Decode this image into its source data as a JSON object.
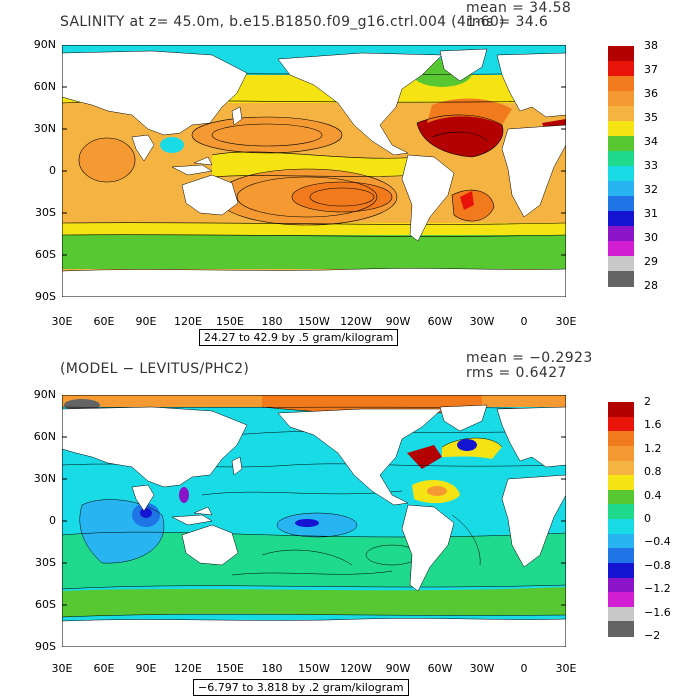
{
  "top": {
    "title": "SALINITY at z=  45.0m, b.e15.B1850.f09_g16.ctrl.004 (41-60)",
    "mean_text": "mean = 34.58",
    "rms_text": "rms = 34.6",
    "range_text": "24.27 to 42.9 by .5 gram/kilogram",
    "colorbar": {
      "labels": [
        "38",
        "37",
        "36",
        "35",
        "34",
        "33",
        "32",
        "31",
        "30",
        "29",
        "28"
      ],
      "colors": [
        "#b30000",
        "#e8140a",
        "#f07a1c",
        "#f59a32",
        "#f5b342",
        "#f5e314",
        "#57c832",
        "#1fd98c",
        "#19dbe6",
        "#28b4f0",
        "#1f74e6",
        "#1414d2",
        "#8c14c8",
        "#d21ed2",
        "#c8c8c8",
        "#646464"
      ]
    }
  },
  "bottom": {
    "title": "(MODEL − LEVITUS/PHC2)",
    "mean_text": "mean = −0.2923",
    "rms_text": "rms = 0.6427",
    "range_text": "−6.797 to 3.818 by .2 gram/kilogram",
    "colorbar": {
      "labels": [
        "2",
        "1.6",
        "1.2",
        "0.8",
        "0.4",
        "0",
        "−0.4",
        "−0.8",
        "−1.2",
        "−1.6",
        "−2"
      ],
      "colors": [
        "#b30000",
        "#e8140a",
        "#f07a1c",
        "#f59a32",
        "#f5b342",
        "#f5e314",
        "#57c832",
        "#1fd98c",
        "#19dbe6",
        "#28b4f0",
        "#1f74e6",
        "#1414d2",
        "#8c14c8",
        "#d21ed2",
        "#c8c8c8",
        "#646464"
      ]
    }
  },
  "axes": {
    "lat_labels": [
      "90N",
      "60N",
      "30N",
      "0",
      "30S",
      "60S",
      "90S"
    ],
    "lon_labels": [
      "30E",
      "60E",
      "90E",
      "120E",
      "150E",
      "180",
      "150W",
      "120W",
      "90W",
      "60W",
      "30W",
      "0",
      "30E"
    ]
  },
  "colors": {
    "land": "#ffffff",
    "top_background_field": "#f5b342",
    "bottom_background_field": "#19dbe6"
  }
}
